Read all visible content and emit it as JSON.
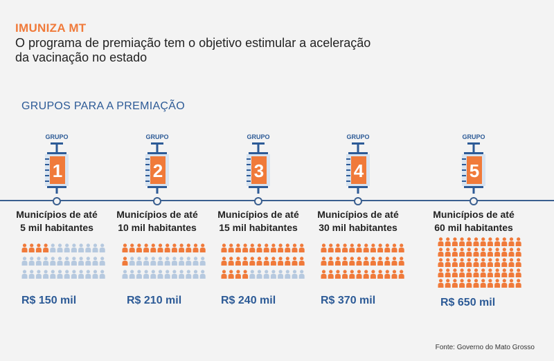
{
  "header": {
    "kicker": "IMUNIZA MT",
    "headline": "O programa de premiação tem o objetivo estimular a aceleração da vacinação no estado",
    "section_title": "GRUPOS PARA A PREMIAÇÃO"
  },
  "colors": {
    "accent": "#f07a3a",
    "primary": "#2c5a96",
    "inactive": "#b6c9df"
  },
  "icons": {
    "syringe": "syringe-icon",
    "person": "person-icon"
  },
  "groups": [
    {
      "group_label": "GRUPO",
      "number": "1",
      "desc_line1": "Municípios de até",
      "desc_line2": "5 mil habitantes",
      "prize": "R$ 150 mil",
      "highlighted_people": 4,
      "total_people": 36
    },
    {
      "group_label": "GRUPO",
      "number": "2",
      "desc_line1": "Municípios de até",
      "desc_line2": "10 mil habitantes",
      "prize": "R$ 210 mil",
      "highlighted_people": 13,
      "total_people": 36
    },
    {
      "group_label": "GRUPO",
      "number": "3",
      "desc_line1": "Municípios de até",
      "desc_line2": "15 mil habitantes",
      "prize": "R$ 240 mil",
      "highlighted_people": 28,
      "total_people": 36
    },
    {
      "group_label": "GRUPO",
      "number": "4",
      "desc_line1": "Municípios de até",
      "desc_line2": "30 mil habitantes",
      "prize": "R$ 370 mil",
      "highlighted_people": 36,
      "total_people": 36
    },
    {
      "group_label": "GRUPO",
      "number": "5",
      "desc_line1": "Municípios de até",
      "desc_line2": "60 mil habitantes",
      "prize": "R$ 650 mil",
      "highlighted_people": 60,
      "total_people": 60
    }
  ],
  "source": "Fonte: Governo do Mato Grosso"
}
